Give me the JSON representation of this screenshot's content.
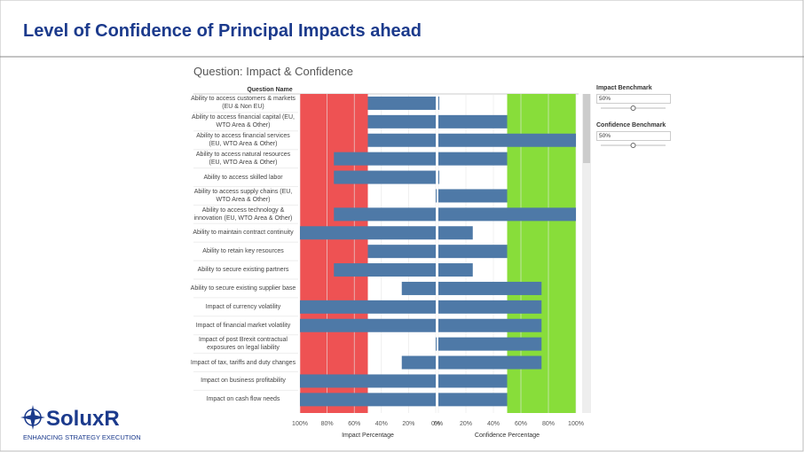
{
  "header": {
    "title": "Level of Confidence of Principal Impacts ahead"
  },
  "logo": {
    "name": "SoluxR",
    "tagline": "ENHANCING STRATEGY EXECUTION"
  },
  "dashboard": {
    "title": "Question: Impact & Confidence",
    "row_header": "Question Name"
  },
  "controls": [
    {
      "label": "Impact Benchmark",
      "value": 50,
      "value_label": "50%"
    },
    {
      "label": "Confidence Benchmark",
      "value": 50,
      "value_label": "50%"
    }
  ],
  "chart_data": [
    {
      "type": "bar",
      "orientation": "horizontal",
      "x_label": "Impact Percentage",
      "color": "#4e79a7",
      "band_color": "#ee5253",
      "categories": [
        "Ability to access customers & markets (EU & Non EU)",
        "Ability to access financial capital (EU, WTO Area & Other)",
        "Ability to access financial services (EU, WTO Area & Other)",
        "Ability to access natural resources (EU, WTO Area & Other)",
        "Ability to access skilled labor",
        "Ability to access supply chains (EU, WTO Area & Other)",
        "Ability to access technology & innovation (EU, WTO Area & Other)",
        "Ability to maintain contract continuity",
        "Ability to retain key resources",
        "Ability to secure existing partners",
        "Ability to secure existing supplier base",
        "Impact of currency volatility",
        "Impact of financial market volatility",
        "Impact of post Brexit contractual exposures on legal liability",
        "Impact of tax, tariffs and duty changes",
        "Impact on business profitability",
        "Impact on cash flow needs"
      ],
      "values": [
        50,
        50,
        50,
        75,
        75,
        0,
        75,
        100,
        50,
        75,
        25,
        100,
        100,
        0,
        25,
        100,
        100
      ],
      "xlim": [
        100,
        0
      ],
      "xticks": [
        {
          "value": 100,
          "label": "100%"
        },
        {
          "value": 80,
          "label": "80%"
        },
        {
          "value": 60,
          "label": "60%"
        },
        {
          "value": 40,
          "label": "40%"
        },
        {
          "value": 20,
          "label": "20%"
        },
        {
          "value": 0,
          "label": "0%"
        }
      ]
    },
    {
      "type": "bar",
      "orientation": "horizontal",
      "x_label": "Confidence Percentage",
      "color": "#4e79a7",
      "band_color": "#88dd3a",
      "values": [
        0,
        50,
        100,
        50,
        0,
        50,
        100,
        25,
        50,
        25,
        75,
        75,
        75,
        75,
        75,
        50,
        50
      ],
      "xlim": [
        0,
        100
      ],
      "xticks": [
        {
          "value": 0,
          "label": "0%"
        },
        {
          "value": 20,
          "label": "20%"
        },
        {
          "value": 40,
          "label": "40%"
        },
        {
          "value": 60,
          "label": "60%"
        },
        {
          "value": 80,
          "label": "80%"
        },
        {
          "value": 100,
          "label": "100%"
        }
      ]
    }
  ]
}
